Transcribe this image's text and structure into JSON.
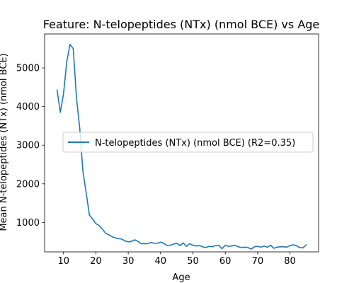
{
  "chart_data": {
    "type": "line",
    "title": "Feature: N-telopeptides (NTx) (nmol BCE) vs Age",
    "xlabel": "Age",
    "ylabel": "Mean N-telopeptides (NTx) (nmol BCE)",
    "xlim": [
      4.15,
      88.85
    ],
    "ylim": [
      238,
      5880
    ],
    "xticks": [
      10,
      20,
      30,
      40,
      50,
      60,
      70,
      80
    ],
    "yticks": [
      1000,
      2000,
      3000,
      4000,
      5000
    ],
    "grid": false,
    "legend_position": "center-right",
    "series": [
      {
        "name": "N-telopeptides (NTx) (nmol BCE) (R2=0.35)",
        "color": "#1f77b4",
        "x": [
          8,
          9,
          10,
          11,
          12,
          13,
          14,
          15,
          16,
          17,
          18,
          19,
          20,
          21,
          22,
          23,
          24,
          25,
          26,
          27,
          28,
          29,
          30,
          31,
          32,
          33,
          34,
          35,
          36,
          37,
          38,
          39,
          40,
          41,
          42,
          43,
          44,
          45,
          46,
          47,
          48,
          49,
          50,
          51,
          52,
          53,
          54,
          55,
          56,
          57,
          58,
          59,
          60,
          61,
          62,
          63,
          64,
          65,
          66,
          67,
          68,
          69,
          70,
          71,
          72,
          73,
          74,
          75,
          76,
          77,
          78,
          79,
          80,
          81,
          82,
          83,
          84,
          85
        ],
        "y": [
          4430,
          3850,
          4330,
          5160,
          5610,
          5500,
          4230,
          3450,
          2320,
          1770,
          1190,
          1090,
          970,
          920,
          830,
          720,
          680,
          630,
          600,
          580,
          570,
          520,
          500,
          510,
          550,
          510,
          450,
          450,
          450,
          480,
          460,
          460,
          490,
          460,
          400,
          410,
          440,
          460,
          400,
          470,
          380,
          450,
          410,
          390,
          400,
          370,
          350,
          380,
          370,
          400,
          410,
          320,
          410,
          380,
          390,
          410,
          370,
          350,
          360,
          350,
          310,
          370,
          380,
          360,
          390,
          360,
          410,
          330,
          360,
          370,
          370,
          360,
          400,
          420,
          400,
          350,
          340,
          420
        ]
      }
    ]
  }
}
